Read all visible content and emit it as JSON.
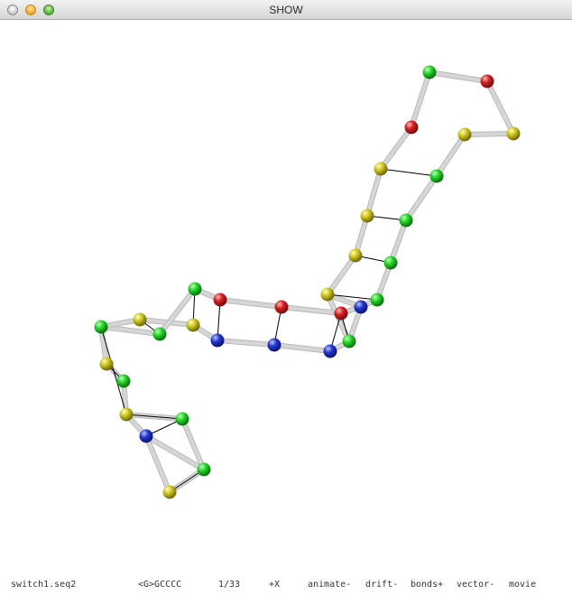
{
  "window": {
    "title": "SHOW"
  },
  "colors": {
    "bond": "#d6d6d6",
    "bond_dark": "#b9b9b9",
    "pair_line": "#000000",
    "green": "#18c41d",
    "red": "#d01f1f",
    "yellow": "#c9c21c",
    "blue": "#1f2ec8"
  },
  "status": {
    "file": "switch1.seq2",
    "sequence": "<G>GCCCC",
    "frame": "1/33",
    "axis": "+X",
    "animate": "animate-",
    "drift": "drift-",
    "bonds": "bonds+",
    "vector": "vector-",
    "movie": "movie"
  }
}
